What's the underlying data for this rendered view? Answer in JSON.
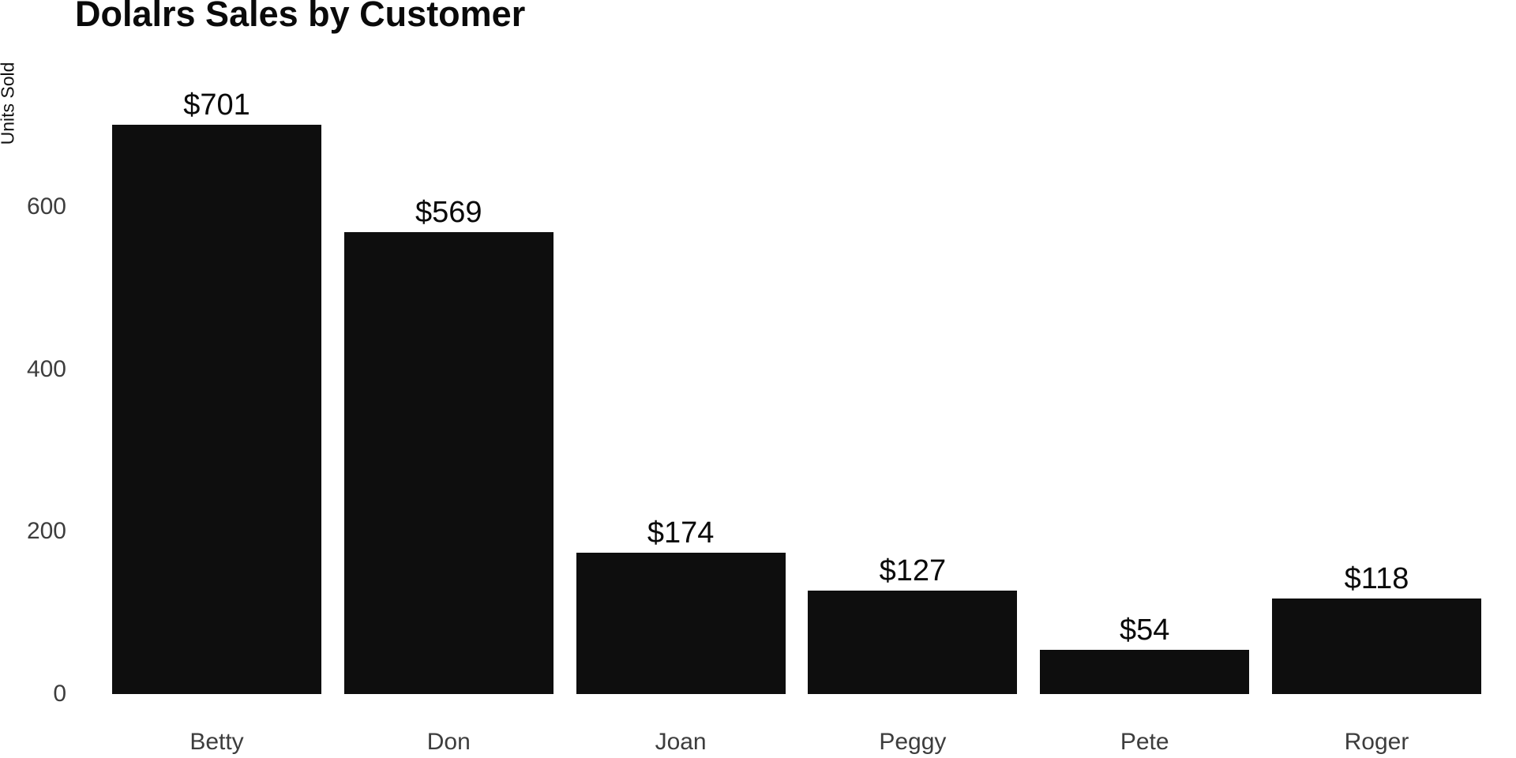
{
  "chart_data": {
    "type": "bar",
    "title": "Dolalrs Sales by Customer",
    "ylabel": "Units Sold",
    "xlabel": "",
    "categories": [
      "Betty",
      "Don",
      "Joan",
      "Peggy",
      "Pete",
      "Roger"
    ],
    "values": [
      701,
      569,
      174,
      127,
      54,
      118
    ],
    "value_labels": [
      "$701",
      "$569",
      "$174",
      "$127",
      "$54",
      "$118"
    ],
    "yticks": [
      0,
      200,
      400,
      600
    ],
    "ylim": [
      0,
      700
    ],
    "grid": false,
    "legend": "none",
    "bar_color": "#0e0e0e",
    "background_color": "#ffffff",
    "tick_color": "#3d3d3d",
    "value_label_color": "#0a0a0a",
    "title_color": "#0a0a0a"
  }
}
